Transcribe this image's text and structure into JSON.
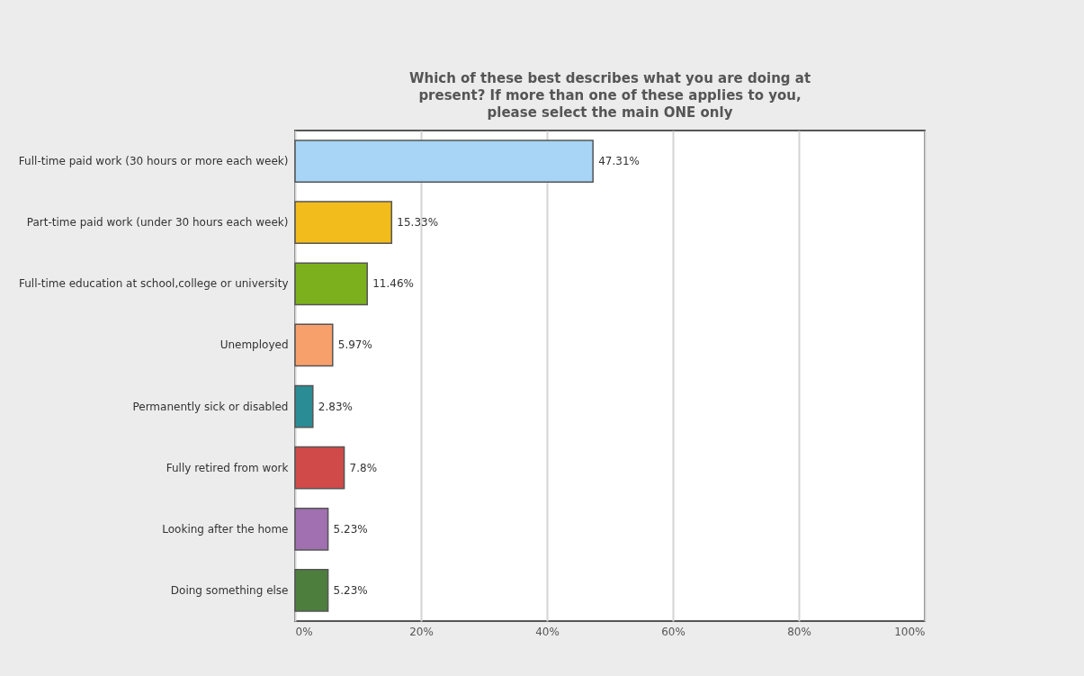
{
  "chart_data": {
    "type": "bar",
    "orientation": "horizontal",
    "title": "Which of these best describes what you are doing at present? If more than one of these applies to you, please select the main ONE only",
    "categories": [
      "Full-time paid work (30 hours or more each week)",
      "Part-time paid work (under 30 hours each week)",
      "Full-time education at school,college or university",
      "Unemployed",
      "Permanently sick or disabled",
      "Fully retired from work",
      "Looking after the home",
      "Doing something else"
    ],
    "values": [
      47.31,
      15.33,
      11.46,
      5.97,
      2.83,
      7.8,
      5.23,
      5.23
    ],
    "value_labels": [
      "47.31%",
      "15.33%",
      "11.46%",
      "5.97%",
      "2.83%",
      "7.8%",
      "5.23%",
      "5.23%"
    ],
    "colors": [
      "#a8d4f5",
      "#f2bc1c",
      "#7cb01c",
      "#f7a06c",
      "#2a8c94",
      "#d04a4a",
      "#a070b0",
      "#4e7e3e"
    ],
    "xlim": [
      0,
      100
    ],
    "xticks": [
      {
        "value": 0,
        "label": "0%"
      },
      {
        "value": 20,
        "label": "20%"
      },
      {
        "value": 40,
        "label": "40%"
      },
      {
        "value": 60,
        "label": "60%"
      },
      {
        "value": 80,
        "label": "80%"
      },
      {
        "value": 100,
        "label": "100%"
      }
    ],
    "grid": "x",
    "legend": false
  }
}
